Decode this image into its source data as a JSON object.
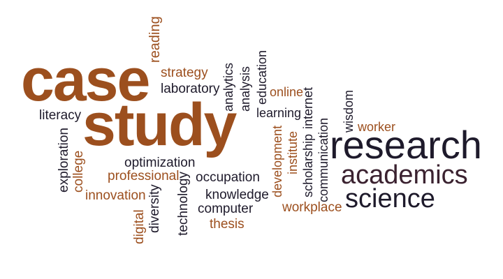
{
  "words": {
    "case": "case",
    "study": "study",
    "research": "research",
    "academics": "academics",
    "science": "science",
    "reading": "reading",
    "strategy": "strategy",
    "laboratory": "laboratory",
    "analytics": "analytics",
    "analysis": "analysis",
    "education": "education",
    "online": "online",
    "learning": "learning",
    "literacy": "literacy",
    "exploration": "exploration",
    "college": "college",
    "optimization": "optimization",
    "professional": "professional",
    "occupation": "occupation",
    "innovation": "innovation",
    "digital": "digital",
    "diversity": "diversity",
    "technology": "technology",
    "knowledge": "knowledge",
    "computer": "computer",
    "thesis": "thesis",
    "development": "development",
    "institute": "institute",
    "scholarship": "scholarship",
    "internet": "internet",
    "communication": "communication",
    "wisdom": "wisdom",
    "worker": "worker",
    "workplace": "workplace"
  },
  "colors": {
    "brown": "#9c4f1e",
    "dark": "#1e1a2b",
    "plum": "#3b2230"
  }
}
